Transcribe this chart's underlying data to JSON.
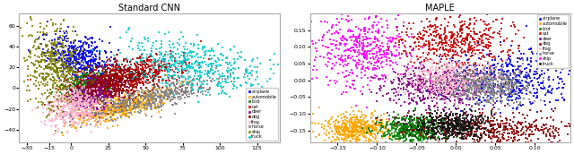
{
  "title_left": "Standard CNN",
  "title_right": "MAPLE",
  "classes": [
    "airplane",
    "automobile",
    "bird",
    "cat",
    "deer",
    "dog",
    "frog",
    "horse",
    "ship",
    "truck"
  ],
  "left_colors": [
    "#0000EE",
    "#FFA500",
    "#008000",
    "#CC0000",
    "#800080",
    "#8B0000",
    "#FFB0C8",
    "#808080",
    "#808000",
    "#00CCCC"
  ],
  "right_colors": [
    "#0000EE",
    "#FFA500",
    "#008000",
    "#CC0000",
    "#800080",
    "#8B0000",
    "#FFB0C8",
    "#808080",
    "#FF00FF",
    "#111111"
  ],
  "n_points": 500,
  "left_xlim": [
    -35,
    140
  ],
  "left_ylim": [
    -52,
    72
  ],
  "right_xlim": [
    -0.185,
    0.145
  ],
  "right_ylim": [
    -0.185,
    0.2
  ],
  "seed": 42,
  "figsize": [
    6.4,
    1.72
  ],
  "dpi": 100
}
